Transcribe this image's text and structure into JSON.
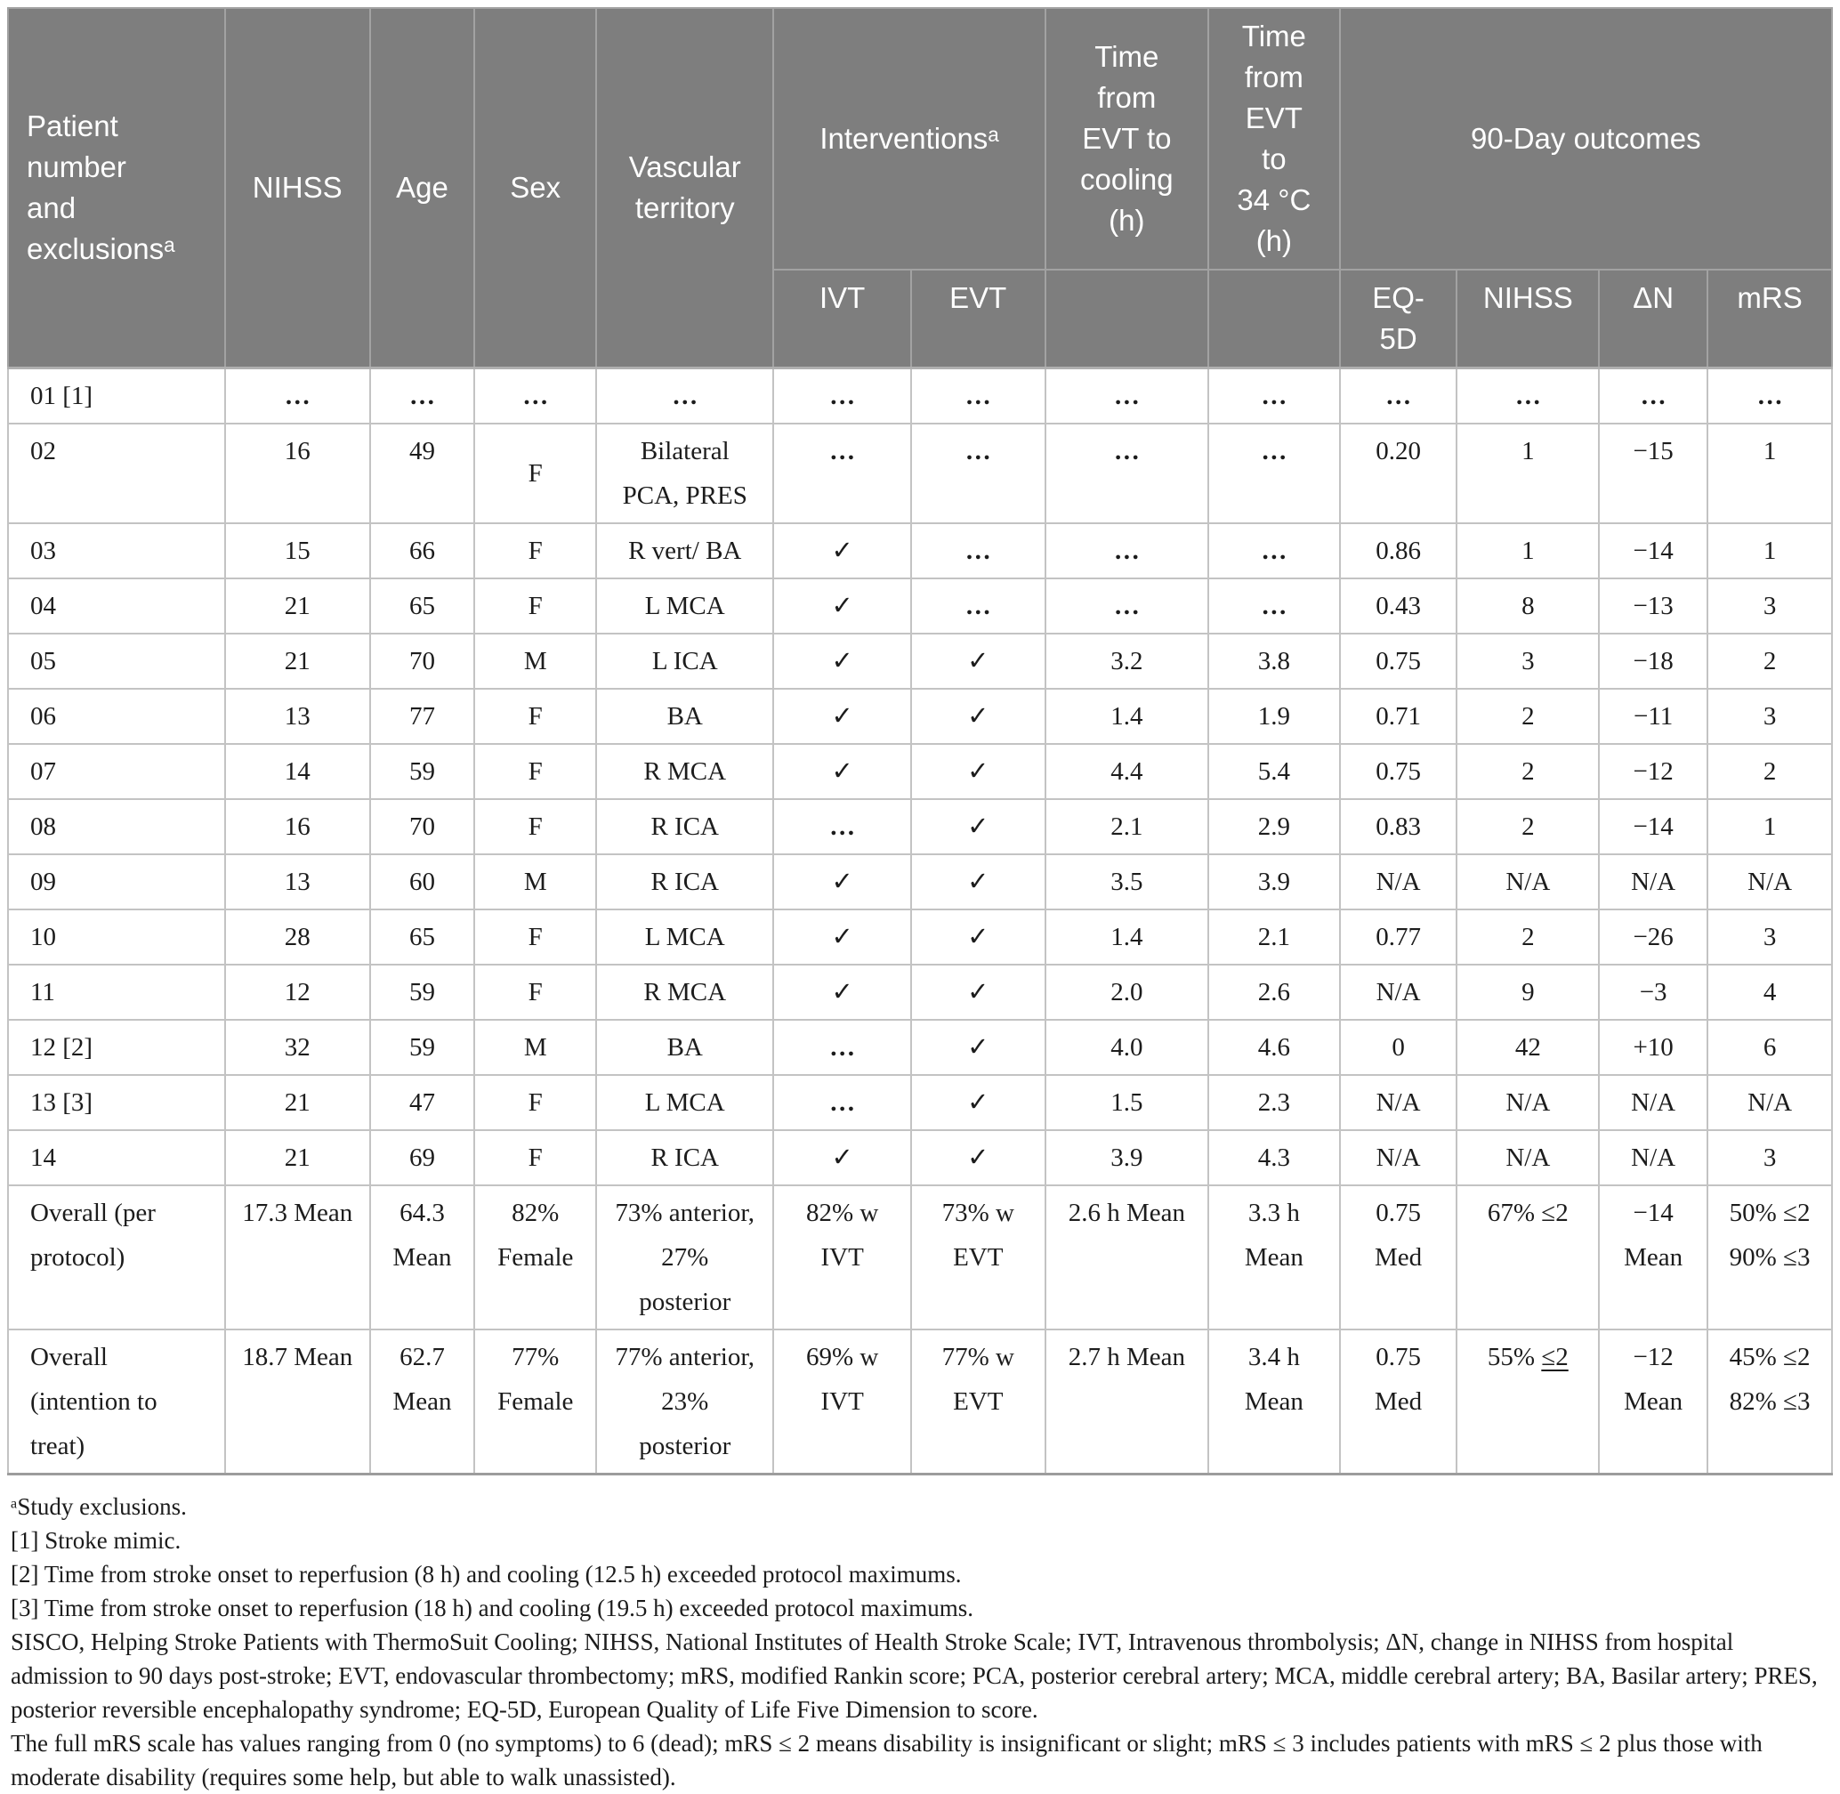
{
  "colors": {
    "header_background": "#7e7e7e",
    "header_text": "#ffffff",
    "body_text": "#1c1c1c"
  },
  "table": {
    "col_widths_pct": [
      11.9,
      7.93,
      5.75,
      6.67,
      9.72,
      7.54,
      7.35,
      8.95,
      7.2,
      6.43,
      7.79,
      5.95,
      6.82
    ],
    "header": {
      "row1": [
        {
          "label": "Patient\nnumber\nand\nexclusionsᵃ",
          "rowspan": 2,
          "align": "left"
        },
        {
          "label": "NIHSS",
          "rowspan": 2
        },
        {
          "label": "Age",
          "rowspan": 2
        },
        {
          "label": "Sex",
          "rowspan": 2
        },
        {
          "label": "Vascular\nterritory",
          "rowspan": 2
        },
        {
          "label": "Interventionsᵃ",
          "colspan": 2
        },
        {
          "label": "Time\nfrom\nEVT to\ncooling\n(h)"
        },
        {
          "label": "Time\nfrom\nEVT\nto\n34 °C\n(h)"
        },
        {
          "label": "90-Day outcomes",
          "colspan": 4
        }
      ],
      "row2": [
        "IVT",
        "EVT",
        "",
        "",
        "EQ-\n5D",
        "NIHSS",
        "ΔN",
        "mRS"
      ]
    },
    "rows": [
      [
        "01 [1]",
        "…",
        "…",
        "…",
        "…",
        "…",
        "…",
        "…",
        "…",
        "…",
        "…",
        "…",
        "…"
      ],
      [
        "02",
        "16",
        "49",
        "F",
        "Bilateral\nPCA, PRES",
        "…",
        "…",
        "…",
        "…",
        "0.20",
        "1",
        "−15",
        "1"
      ],
      [
        "03",
        "15",
        "66",
        "F",
        "R vert/ BA",
        "✓",
        "…",
        "…",
        "…",
        "0.86",
        "1",
        "−14",
        "1"
      ],
      [
        "04",
        "21",
        "65",
        "F",
        "L MCA",
        "✓",
        "…",
        "…",
        "…",
        "0.43",
        "8",
        "−13",
        "3"
      ],
      [
        "05",
        "21",
        "70",
        "M",
        "L ICA",
        "✓",
        "✓",
        "3.2",
        "3.8",
        "0.75",
        "3",
        "−18",
        "2"
      ],
      [
        "06",
        "13",
        "77",
        "F",
        "BA",
        "✓",
        "✓",
        "1.4",
        "1.9",
        "0.71",
        "2",
        "−11",
        "3"
      ],
      [
        "07",
        "14",
        "59",
        "F",
        "R MCA",
        "✓",
        "✓",
        "4.4",
        "5.4",
        "0.75",
        "2",
        "−12",
        "2"
      ],
      [
        "08",
        "16",
        "70",
        "F",
        "R ICA",
        "…",
        "✓",
        "2.1",
        "2.9",
        "0.83",
        "2",
        "−14",
        "1"
      ],
      [
        "09",
        "13",
        "60",
        "M",
        "R ICA",
        "✓",
        "✓",
        "3.5",
        "3.9",
        "N/A",
        "N/A",
        "N/A",
        "N/A"
      ],
      [
        "10",
        "28",
        "65",
        "F",
        "L MCA",
        "✓",
        "✓",
        "1.4",
        "2.1",
        "0.77",
        "2",
        "−26",
        "3"
      ],
      [
        "11",
        "12",
        "59",
        "F",
        "R MCA",
        "✓",
        "✓",
        "2.0",
        "2.6",
        "N/A",
        "9",
        "−3",
        "4"
      ],
      [
        "12 [2]",
        "32",
        "59",
        "M",
        "BA",
        "…",
        "✓",
        "4.0",
        "4.6",
        "0",
        "42",
        "+10",
        "6"
      ],
      [
        "13 [3]",
        "21",
        "47",
        "F",
        "L MCA",
        "…",
        "✓",
        "1.5",
        "2.3",
        "N/A",
        "N/A",
        "N/A",
        "N/A"
      ],
      [
        "14",
        "21",
        "69",
        "F",
        "R ICA",
        "✓",
        "✓",
        "3.9",
        "4.3",
        "N/A",
        "N/A",
        "N/A",
        "3"
      ],
      [
        "Overall (per\nprotocol)",
        "17.3 Mean",
        "64.3\nMean",
        "82%\nFemale",
        "73% anterior,\n27%\nposterior",
        "82% w\nIVT",
        "73% w\nEVT",
        "2.6 h Mean",
        "3.3 h\nMean",
        "0.75\nMed",
        "67% ≤2",
        "−14\nMean",
        "50% ≤2\n90% ≤3"
      ],
      [
        "Overall\n(intention to\ntreat)",
        "18.7 Mean",
        "62.7\nMean",
        "77%\nFemale",
        "77% anterior,\n23%\nposterior",
        "69% w\nIVT",
        "77% w\nEVT",
        "2.7 h Mean",
        "3.4 h\nMean",
        "0.75\nMed",
        {
          "text": "55% ",
          "utext": "≤2"
        },
        "−12\nMean",
        "45% ≤2\n82% ≤3"
      ]
    ],
    "footnotes": [
      "ᵃStudy exclusions.",
      "[1] Stroke mimic.",
      "[2] Time from stroke onset to reperfusion (8 h) and cooling (12.5 h) exceeded protocol maximums.",
      "[3] Time from stroke onset to reperfusion (18 h) and cooling (19.5 h) exceeded protocol maximums.",
      "SISCO, Helping Stroke Patients with ThermoSuit Cooling; NIHSS, National Institutes of Health Stroke Scale; IVT, Intravenous thrombolysis; ΔN, change in NIHSS from hospital admission to 90 days post-stroke; EVT, endovascular thrombectomy; mRS, modified Rankin score; PCA, posterior cerebral artery; MCA, middle cerebral artery; BA, Basilar artery; PRES, posterior reversible encephalopathy syndrome; EQ-5D, European Quality of Life Five Dimension to score.",
      "The full mRS scale has values ranging from 0 (no symptoms) to 6 (dead); mRS ≤ 2 means disability is insignificant or slight; mRS ≤ 3 includes patients with mRS ≤ 2 plus those with moderate disability (requires some help, but able to walk unassisted)."
    ]
  }
}
